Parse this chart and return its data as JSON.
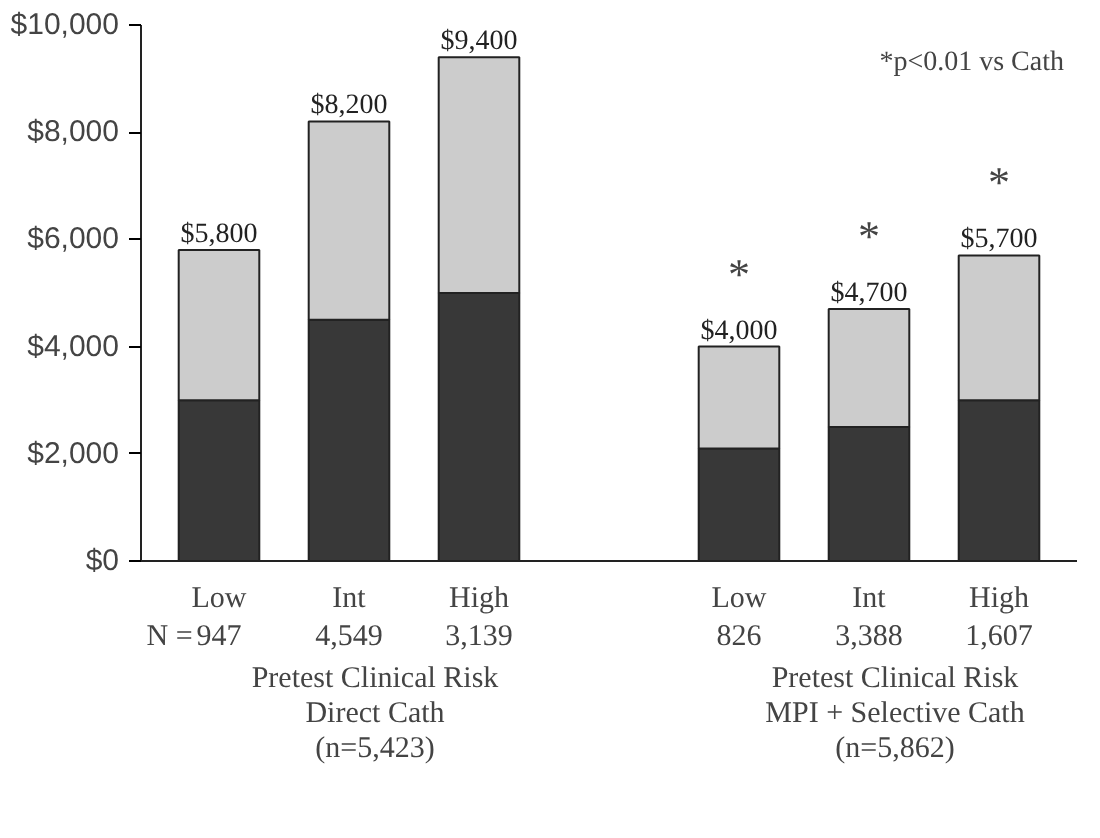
{
  "chart_data": {
    "type": "bar",
    "stacked": true,
    "categories": [
      "Low\n947",
      "Int\n4,549",
      "High\n3,139",
      null,
      "Low\n826",
      "Int\n3,388",
      "High\n1,607"
    ],
    "series": [
      {
        "color": "#383838",
        "values": [
          3000,
          4500,
          5000,
          null,
          2100,
          2500,
          3000
        ]
      },
      {
        "color": "#cccccc",
        "values": [
          2800,
          3700,
          4400,
          null,
          1900,
          2200,
          2700
        ]
      }
    ],
    "totals": [
      "$5,800",
      "$8,200",
      "$9,400",
      null,
      "$4,000",
      "$4,700",
      "$5,700"
    ],
    "ylim": [
      0,
      10000
    ],
    "yticks": [
      {
        "value": 0,
        "label": "$0"
      },
      {
        "value": 2000,
        "label": "$2,000"
      },
      {
        "value": 4000,
        "label": "$4,000"
      },
      {
        "value": 6000,
        "label": "$6,000"
      },
      {
        "value": 8000,
        "label": "$8,000"
      },
      {
        "value": 10000,
        "label": "$10,000"
      }
    ],
    "grid": false,
    "annotations": [
      "*p<0.01 vs Cath",
      "N =",
      "Pretest Clinical Risk\nDirect Cath\n(n=5,423)",
      "Pretest Clinical Risk\nMPI + Selective Cath\n(n=5,862)",
      "*",
      "*",
      "*"
    ]
  }
}
